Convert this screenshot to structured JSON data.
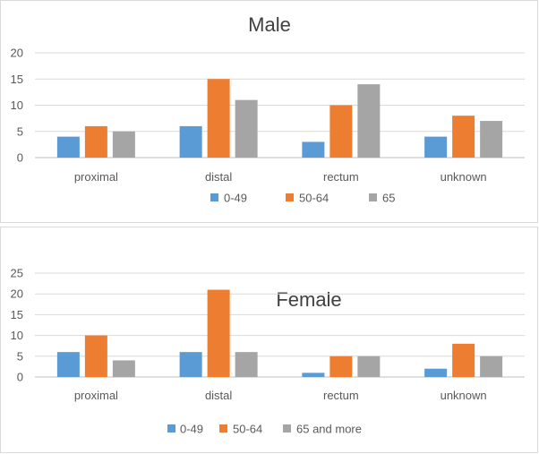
{
  "chart_data": [
    {
      "type": "bar",
      "title": "Male",
      "categories": [
        "proximal",
        "distal",
        "rectum",
        "unknown"
      ],
      "series": [
        {
          "name": "0-49",
          "color": "#5b9bd5",
          "values": [
            4,
            6,
            3,
            4
          ]
        },
        {
          "name": "50-64",
          "color": "#ed7d31",
          "values": [
            6,
            15,
            10,
            8
          ]
        },
        {
          "name": "65",
          "color": "#a5a5a5",
          "values": [
            5,
            11,
            14,
            7
          ]
        }
      ],
      "yticks": [
        "0",
        "5",
        "10",
        "15",
        "20"
      ],
      "ylim": [
        0,
        20
      ],
      "grid": true,
      "legend": "bottom"
    },
    {
      "type": "bar",
      "title": "Female",
      "categories": [
        "proximal",
        "distal",
        "rectum",
        "unknown"
      ],
      "series": [
        {
          "name": "0-49",
          "color": "#5b9bd5",
          "values": [
            6,
            6,
            1,
            2
          ]
        },
        {
          "name": "50-64",
          "color": "#ed7d31",
          "values": [
            10,
            21,
            5,
            8
          ]
        },
        {
          "name": "65 and more",
          "color": "#a5a5a5",
          "values": [
            4,
            6,
            5,
            5
          ]
        }
      ],
      "yticks": [
        "0",
        "5",
        "10",
        "15",
        "20",
        "25"
      ],
      "ylim": [
        0,
        25
      ],
      "grid": true,
      "legend": "bottom"
    }
  ]
}
